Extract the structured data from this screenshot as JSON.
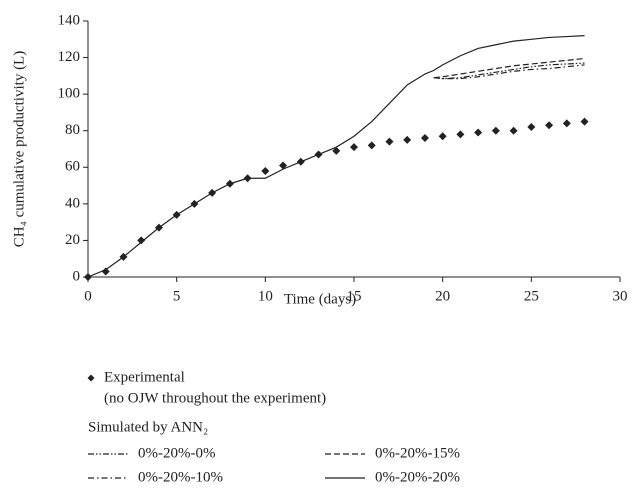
{
  "chart_data": {
    "type": "line",
    "x_label": "Time (days)",
    "y_label": "CH₄ cumulative productivity (L)",
    "x": [
      0,
      1,
      2,
      3,
      4,
      5,
      6,
      7,
      8,
      9,
      10,
      11,
      12,
      13,
      14,
      15,
      16,
      17,
      18,
      19,
      19.5,
      20,
      21,
      22,
      23,
      24,
      25,
      26,
      27,
      28
    ],
    "series": [
      {
        "name": "Experimental",
        "marker": "diamond",
        "color": "#222222",
        "values": [
          0,
          3,
          11,
          20,
          27,
          34,
          40,
          46,
          51,
          54,
          58,
          61,
          63,
          67,
          69,
          71,
          72,
          74,
          75,
          76,
          null,
          77,
          78,
          79,
          80,
          80,
          82,
          83,
          84,
          85
        ]
      },
      {
        "name": "0%-20%-0%",
        "line_style": "dash-dot-dot",
        "color": "#222222",
        "values": [
          null,
          null,
          null,
          null,
          null,
          null,
          null,
          null,
          null,
          null,
          null,
          null,
          null,
          null,
          null,
          null,
          null,
          null,
          null,
          null,
          109,
          108.5,
          109,
          110.5,
          112,
          113.5,
          115,
          116,
          116.5,
          117
        ]
      },
      {
        "name": "0%-20%-15%",
        "line_style": "dashed",
        "color": "#222222",
        "values": [
          null,
          null,
          null,
          null,
          null,
          null,
          null,
          null,
          null,
          null,
          null,
          null,
          null,
          null,
          null,
          null,
          null,
          null,
          null,
          null,
          109,
          109.5,
          111,
          112.5,
          114,
          115.5,
          116.5,
          117.5,
          118.5,
          119.5
        ]
      },
      {
        "name": "0%-20%-10%",
        "line_style": "dash-dot",
        "color": "#222222",
        "values": [
          null,
          null,
          null,
          null,
          null,
          null,
          null,
          null,
          null,
          null,
          null,
          null,
          null,
          null,
          null,
          null,
          null,
          null,
          null,
          null,
          109,
          108.5,
          108.5,
          109.5,
          111,
          112.5,
          113.5,
          114,
          115,
          116
        ]
      },
      {
        "name": "0%-20%-20%",
        "line_style": "solid",
        "color": "#222222",
        "values": [
          0,
          4,
          11,
          19,
          27,
          34,
          40,
          46,
          51,
          54,
          54,
          59,
          63,
          67,
          71,
          77,
          85,
          95,
          105,
          111,
          113,
          116,
          121,
          125,
          127,
          129,
          130,
          131,
          131.5,
          132
        ]
      }
    ],
    "legend_note": "(no OJW throughout the experiment)",
    "legend_group_title": "Simulated by ANN₂",
    "xlim": [
      0,
      30
    ],
    "xticks": [
      0,
      5,
      10,
      15,
      20,
      25,
      30
    ],
    "ylim": [
      0,
      140
    ],
    "yticks": [
      0,
      20,
      40,
      60,
      80,
      100,
      120,
      140
    ]
  }
}
